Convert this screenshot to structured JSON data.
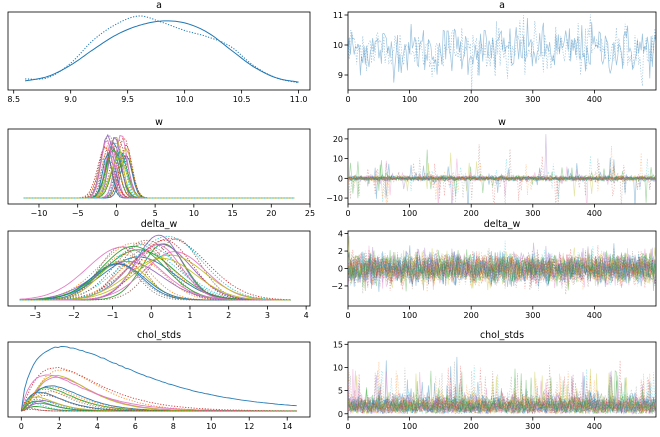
{
  "chart_data": [
    {
      "type": "line",
      "panel": "density",
      "title": "a",
      "xlim": [
        8.45,
        11.1
      ],
      "xticks": [
        "8.5",
        "9.0",
        "9.5",
        "10.0",
        "10.5",
        "11.0"
      ],
      "xtick_values": [
        8.5,
        9.0,
        9.5,
        10.0,
        10.5,
        11.0
      ],
      "series": [
        {
          "style": "solid",
          "color": "#1f77b4",
          "x": [
            8.6,
            8.8,
            9.0,
            9.2,
            9.4,
            9.6,
            9.8,
            10.0,
            10.2,
            10.4,
            10.6,
            10.8,
            11.0
          ],
          "y": [
            0.05,
            0.12,
            0.3,
            0.55,
            0.78,
            0.93,
            1.0,
            0.97,
            0.82,
            0.55,
            0.28,
            0.1,
            0.03
          ]
        },
        {
          "style": "dotted",
          "color": "#1f77b4",
          "x": [
            8.6,
            8.8,
            9.0,
            9.2,
            9.4,
            9.6,
            9.8,
            10.0,
            10.2,
            10.4,
            10.6,
            10.8,
            11.0
          ],
          "y": [
            0.08,
            0.1,
            0.33,
            0.7,
            0.95,
            1.08,
            0.98,
            0.85,
            0.75,
            0.6,
            0.3,
            0.1,
            0.02
          ]
        }
      ]
    },
    {
      "type": "line",
      "panel": "trace",
      "title": "a",
      "xlim": [
        0,
        500
      ],
      "ylim": [
        8.5,
        11.1
      ],
      "xticks": [
        "0",
        "100",
        "200",
        "300",
        "400"
      ],
      "xtick_values": [
        0,
        100,
        200,
        300,
        400
      ],
      "yticks": [
        "9",
        "10",
        "11"
      ],
      "ytick_values": [
        9,
        10,
        11
      ],
      "n_draws": 500,
      "series_count": 2,
      "mean": 9.85,
      "sd": 0.42
    },
    {
      "type": "line",
      "panel": "density",
      "title": "w",
      "xlim": [
        -14,
        25
      ],
      "xticks": [
        "−10",
        "−5",
        "0",
        "5",
        "10",
        "15",
        "20",
        "25"
      ],
      "xtick_values": [
        -10,
        -5,
        0,
        5,
        10,
        15,
        20,
        25
      ],
      "series_count": 30,
      "center_range": [
        -1.5,
        1.5
      ],
      "sd": 0.8,
      "tail_extent": [
        -12,
        23
      ]
    },
    {
      "type": "line",
      "panel": "trace",
      "title": "w",
      "xlim": [
        0,
        500
      ],
      "ylim": [
        -13,
        25
      ],
      "xticks": [
        "0",
        "100",
        "200",
        "300",
        "400"
      ],
      "xtick_values": [
        0,
        100,
        200,
        300,
        400
      ],
      "yticks": [
        "−10",
        "0",
        "10",
        "20"
      ],
      "ytick_values": [
        -10,
        0,
        10,
        20
      ],
      "n_draws": 500,
      "series_count": 24
    },
    {
      "type": "line",
      "panel": "density",
      "title": "delta_w",
      "xlim": [
        -3.7,
        4.1
      ],
      "xticks": [
        "−3",
        "−2",
        "−1",
        "0",
        "1",
        "2",
        "3",
        "4"
      ],
      "xtick_values": [
        -3,
        -2,
        -1,
        0,
        1,
        2,
        3,
        4
      ],
      "series_count": 30,
      "center_range": [
        -0.9,
        0.7
      ],
      "sd": 0.75,
      "tail_extent": [
        -3.4,
        3.6
      ]
    },
    {
      "type": "line",
      "panel": "trace",
      "title": "delta_w",
      "xlim": [
        0,
        500
      ],
      "ylim": [
        -4.3,
        4.3
      ],
      "xticks": [
        "0",
        "100",
        "200",
        "300",
        "400"
      ],
      "xtick_values": [
        0,
        100,
        200,
        300,
        400
      ],
      "yticks": [
        "−2",
        "0",
        "2",
        "4"
      ],
      "ytick_values": [
        -2,
        0,
        2,
        4
      ],
      "n_draws": 500,
      "series_count": 24
    },
    {
      "type": "line",
      "panel": "density",
      "title": "chol_stds",
      "xlim": [
        -0.7,
        15.2
      ],
      "xticks": [
        "0",
        "2",
        "4",
        "6",
        "8",
        "10",
        "12",
        "14"
      ],
      "xtick_values": [
        0,
        2,
        4,
        6,
        8,
        10,
        12,
        14
      ],
      "series_count": 24,
      "mode_range": [
        0.3,
        2.2
      ],
      "tail_extent": [
        0,
        14.5
      ]
    },
    {
      "type": "line",
      "panel": "trace",
      "title": "chol_stds",
      "xlim": [
        0,
        500
      ],
      "ylim": [
        -0.7,
        15.5
      ],
      "xticks": [
        "0",
        "100",
        "200",
        "300",
        "400"
      ],
      "xtick_values": [
        0,
        100,
        200,
        300,
        400
      ],
      "yticks": [
        "0",
        "5",
        "10",
        "15"
      ],
      "ytick_values": [
        0,
        5,
        10,
        15
      ],
      "n_draws": 500,
      "series_count": 24
    }
  ],
  "colors": [
    "#1f77b4",
    "#ff7f0e",
    "#2ca02c",
    "#d62728",
    "#9467bd",
    "#8c564b",
    "#e377c2",
    "#7f7f7f",
    "#bcbd22",
    "#17becf"
  ]
}
